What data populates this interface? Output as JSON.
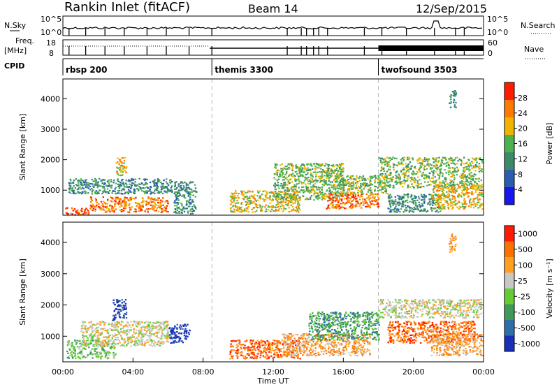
{
  "header": {
    "station": "Rankin Inlet (fitACF)",
    "beam": "Beam 14",
    "date": "12/Sep/2015"
  },
  "top_labels": {
    "nsky": "N.Sky",
    "nsearch": "N.Search",
    "freq_line1": "Freq.",
    "freq_line2": "[MHz]",
    "nave": "Nave",
    "cpid": "CPID"
  },
  "cpid_segments": [
    {
      "label": "rbsp 200",
      "start_hour": 0
    },
    {
      "label": "themis 3300",
      "start_hour": 8.5
    },
    {
      "label": "twofsound 3503",
      "start_hour": 18
    }
  ],
  "x_axis": {
    "ticks": [
      "00:00",
      "04:00",
      "08:00",
      "12:00",
      "16:00",
      "20:00",
      "00:00"
    ],
    "label": "Time UT"
  },
  "colors": {
    "axis": "#000000",
    "dashed": "#bbbbbb"
  },
  "chart_data": [
    {
      "type": "heatmap",
      "title": "Power",
      "ylabel": "Slant Range [km]",
      "xlabel": "Time UT",
      "ylim": [
        180,
        4650
      ],
      "xlim_hours": [
        0,
        24
      ],
      "yticks": [
        "1000",
        "2000",
        "3000",
        "4000"
      ],
      "colorbar": {
        "label": "Power [dB]",
        "ticks": [
          "4",
          "8",
          "12",
          "16",
          "20",
          "24",
          "28"
        ],
        "range": [
          0,
          32
        ],
        "colors": [
          "#1616ee",
          "#2a5db0",
          "#3d8a6a",
          "#4cb34c",
          "#f0b400",
          "#ff7800",
          "#ff1a00"
        ]
      },
      "echo_regions": [
        {
          "t0": 0.1,
          "t1": 1.5,
          "r0": 200,
          "r1": 450,
          "level": 6
        },
        {
          "t0": 1.5,
          "t1": 6.0,
          "r0": 300,
          "r1": 800,
          "level": 5
        },
        {
          "t0": 0.3,
          "t1": 6.2,
          "r0": 900,
          "r1": 1400,
          "level": 2
        },
        {
          "t0": 3.0,
          "t1": 3.6,
          "r0": 1500,
          "r1": 2100,
          "level": 4
        },
        {
          "t0": 6.3,
          "t1": 7.6,
          "r0": 250,
          "r1": 1300,
          "level": 2
        },
        {
          "t0": 9.5,
          "t1": 13.5,
          "r0": 300,
          "r1": 1000,
          "level": 4
        },
        {
          "t0": 12.0,
          "t1": 16.0,
          "r0": 700,
          "r1": 1900,
          "level": 3
        },
        {
          "t0": 15.0,
          "t1": 18.0,
          "r0": 400,
          "r1": 900,
          "level": 5
        },
        {
          "t0": 15.5,
          "t1": 18.5,
          "r0": 900,
          "r1": 1500,
          "level": 3
        },
        {
          "t0": 18.0,
          "t1": 23.9,
          "r0": 1100,
          "r1": 2100,
          "level": 3
        },
        {
          "t0": 18.5,
          "t1": 21.5,
          "r0": 300,
          "r1": 900,
          "level": 2
        },
        {
          "t0": 21.0,
          "t1": 23.9,
          "r0": 400,
          "r1": 1200,
          "level": 4
        },
        {
          "t0": 22.0,
          "t1": 22.4,
          "r0": 3700,
          "r1": 4300,
          "level": 2
        }
      ]
    },
    {
      "type": "heatmap",
      "title": "Velocity",
      "ylabel": "Slant Range [km]",
      "xlabel": "Time UT",
      "ylim": [
        180,
        4650
      ],
      "xlim_hours": [
        0,
        24
      ],
      "yticks": [
        "1000",
        "2000",
        "3000",
        "4000"
      ],
      "colorbar": {
        "label": "Velocity [m s⁻¹]",
        "ticks": [
          "1000",
          "500",
          "100",
          "25",
          "-25",
          "-100",
          "-500",
          "-1000"
        ],
        "colors": [
          "#1a2fb8",
          "#2f6fa8",
          "#3f9a5a",
          "#66cc33",
          "#c8c8c8",
          "#ffa020",
          "#ff7000",
          "#ff1a00"
        ]
      },
      "echo_regions": [
        {
          "t0": 0.2,
          "t1": 3.0,
          "r0": 300,
          "r1": 900,
          "level": 3
        },
        {
          "t0": 1.0,
          "t1": 6.0,
          "r0": 700,
          "r1": 1500,
          "level": 4
        },
        {
          "t0": 2.8,
          "t1": 3.6,
          "r0": 1500,
          "r1": 2200,
          "level": 0
        },
        {
          "t0": 6.0,
          "t1": 7.2,
          "r0": 800,
          "r1": 1400,
          "level": 0
        },
        {
          "t0": 9.5,
          "t1": 13.5,
          "r0": 300,
          "r1": 900,
          "level": 6
        },
        {
          "t0": 12.5,
          "t1": 17.5,
          "r0": 400,
          "r1": 1100,
          "level": 5
        },
        {
          "t0": 14.0,
          "t1": 18.0,
          "r0": 900,
          "r1": 1800,
          "level": 2
        },
        {
          "t0": 18.0,
          "t1": 23.9,
          "r0": 1600,
          "r1": 2200,
          "level": 4
        },
        {
          "t0": 18.5,
          "t1": 23.5,
          "r0": 800,
          "r1": 1500,
          "level": 6
        },
        {
          "t0": 21.0,
          "t1": 23.9,
          "r0": 400,
          "r1": 1100,
          "level": 5
        },
        {
          "t0": 22.0,
          "t1": 22.4,
          "r0": 3700,
          "r1": 4300,
          "level": 5
        }
      ]
    }
  ]
}
